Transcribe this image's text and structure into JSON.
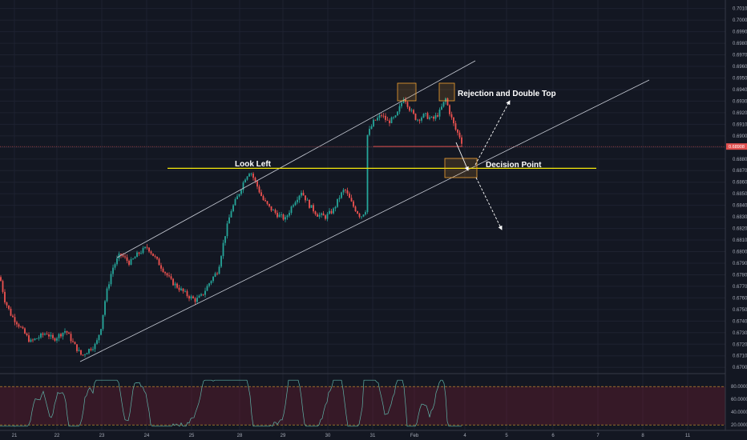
{
  "chart_data": {
    "type": "candlestick",
    "title": "",
    "x_ticks": [
      "21",
      "22",
      "23",
      "24",
      "25",
      "28",
      "29",
      "30",
      "31",
      "Feb",
      "4",
      "5",
      "6",
      "7",
      "8",
      "11"
    ],
    "y_ticks": [
      "0.70100",
      "0.70000",
      "0.69900",
      "0.69800",
      "0.69700",
      "0.69600",
      "0.69500",
      "0.69400",
      "0.69300",
      "0.69200",
      "0.69100",
      "0.69000",
      "0.68900",
      "0.68800",
      "0.68700",
      "0.68600",
      "0.68500",
      "0.68400",
      "0.68300",
      "0.68200",
      "0.68100",
      "0.68000",
      "0.67900",
      "0.67800",
      "0.67700",
      "0.67600",
      "0.67500",
      "0.67400",
      "0.67300",
      "0.67200",
      "0.67100",
      "0.67000"
    ],
    "ylim": [
      0.6696,
      0.7016
    ],
    "current_price": "0.68908",
    "current_price_value": 0.68908,
    "horizontal_level": 0.6872,
    "annotations": {
      "look_left": "Look Left",
      "rejection": "Rejection and Double Top",
      "decision": "Decision Point"
    },
    "colors": {
      "up": "#26a69a",
      "down": "#ef5350",
      "level": "#f5e90b",
      "channel": "#c8ccd6",
      "price_line": "#e0504f",
      "box": "#f0a030"
    },
    "rsi": {
      "y_ticks": [
        "80.0000",
        "60.0000",
        "40.0000",
        "20.0000"
      ],
      "upper_band": 80,
      "lower_band": 20,
      "ylim": [
        14,
        94
      ]
    }
  }
}
